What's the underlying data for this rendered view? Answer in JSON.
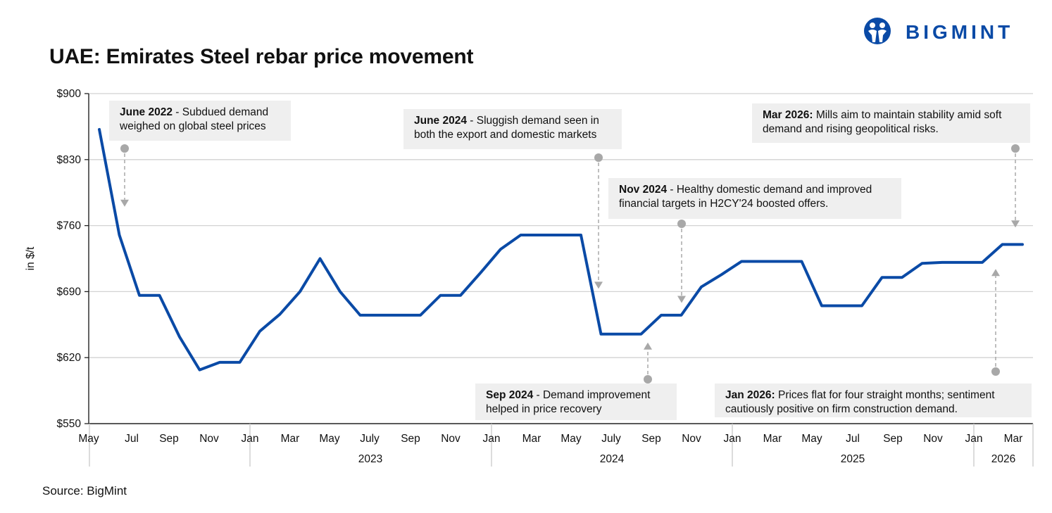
{
  "brand": {
    "name": "BIGMINT",
    "color": "#0a4aa6"
  },
  "title": "UAE: Emirates Steel rebar price movement",
  "source": "Source: BigMint",
  "chart_data": {
    "type": "line",
    "title": "UAE: Emirates Steel rebar price movement",
    "ylabel": "in $/t",
    "xlabel": "",
    "ylim": [
      550,
      900
    ],
    "yticks": [
      550,
      620,
      690,
      760,
      830,
      900
    ],
    "ytick_labels": [
      "$550",
      "$620",
      "$690",
      "$760",
      "$830",
      "$900"
    ],
    "line_color": "#0a4aa6",
    "grid": true,
    "month_ticks": [
      "May",
      "Jul",
      "Sep",
      "Nov",
      "Jan",
      "Mar",
      "May",
      "July",
      "Sep",
      "Nov",
      "Jan",
      "Mar",
      "May",
      "July",
      "Sep",
      "Nov",
      "Jan",
      "Mar",
      "May",
      "Jul",
      "Sep",
      "Nov",
      "Jan",
      "Mar"
    ],
    "year_labels": [
      "2023",
      "2024",
      "2025",
      "2026"
    ],
    "series": [
      {
        "name": "Emirates Steel rebar price",
        "values": [
          862,
          750,
          686,
          686,
          642,
          607,
          615,
          615,
          648,
          666,
          690,
          725,
          690,
          665,
          665,
          665,
          665,
          686,
          686,
          710,
          735,
          750,
          750,
          750,
          750,
          645,
          645,
          645,
          665,
          665,
          695,
          708,
          722,
          722,
          722,
          722,
          675,
          675,
          675,
          705,
          705,
          720,
          721,
          721,
          721,
          740,
          740
        ]
      }
    ],
    "annotations": [
      {
        "bold": "June 2022",
        "text": " - Subdued demand",
        "line2": "weighed on global steel prices",
        "arrow_value": 780,
        "direction": "down"
      },
      {
        "bold": "June 2024",
        "text": " - Sluggish demand seen in",
        "line2": "both the export and domestic markets",
        "arrow_value": 693,
        "direction": "down"
      },
      {
        "bold": "Nov 2024",
        "text": " - Healthy domestic demand and improved",
        "line2": "financial targets in H2CY'24 boosted offers.",
        "arrow_value": 678,
        "direction": "down"
      },
      {
        "bold": "Sep 2024",
        "text": " - Demand improvement",
        "line2": "helped in price recovery",
        "arrow_value": 636,
        "direction": "up"
      },
      {
        "bold": "Mar 2026:",
        "text": " Mills aim to maintain stability amid soft",
        "line2": "demand and rising geopolitical risks.",
        "arrow_value": 758,
        "direction": "down"
      },
      {
        "bold": "Jan 2026:",
        "text": " Prices flat for four straight months; sentiment",
        "line2": "cautiously positive on firm construction demand.",
        "arrow_value": 714,
        "direction": "up"
      }
    ]
  }
}
